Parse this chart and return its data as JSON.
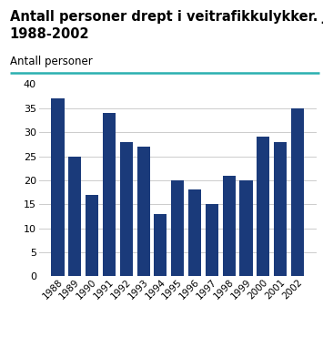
{
  "title_line1": "Antall personer drept i veitrafikkulykker. Januar.",
  "title_line2": "1988-2002",
  "ylabel": "Antall personer",
  "years": [
    "1988",
    "1989",
    "1990",
    "1991",
    "1992",
    "1993",
    "1994",
    "1995",
    "1996",
    "1997",
    "1998",
    "1999",
    "2000",
    "2001",
    "2002"
  ],
  "values": [
    37,
    25,
    17,
    34,
    28,
    27,
    13,
    20,
    18,
    15,
    21,
    20,
    29,
    28,
    35
  ],
  "bar_color": "#1a3a7a",
  "ylim": [
    0,
    40
  ],
  "yticks": [
    0,
    5,
    10,
    15,
    20,
    25,
    30,
    35,
    40
  ],
  "title_fontsize": 10.5,
  "ylabel_fontsize": 8.5,
  "tick_fontsize": 8,
  "bg_color": "#ffffff",
  "grid_color": "#cccccc",
  "title_color": "#000000",
  "teal_line_color": "#2ab0b0"
}
